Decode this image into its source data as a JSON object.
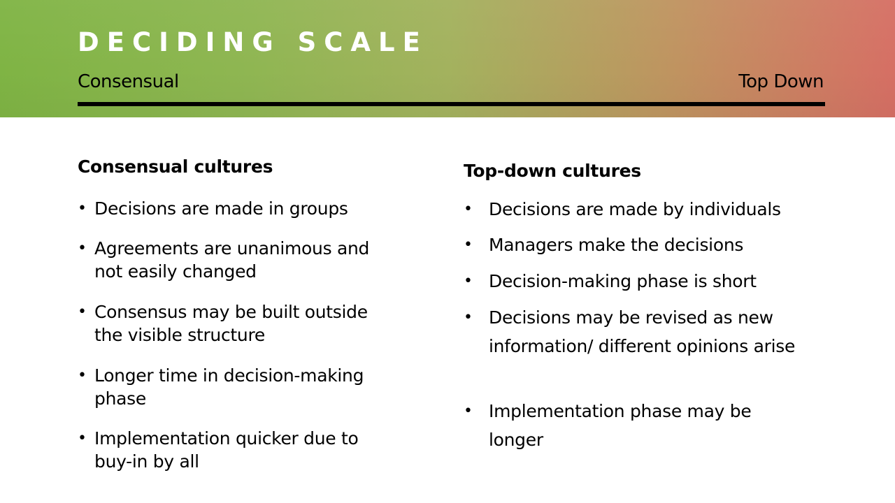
{
  "slide": {
    "title": "DECIDING SCALE",
    "scale": {
      "left_label": "Consensual",
      "right_label": "Top Down"
    },
    "colors": {
      "gradient_start": "#7fb444",
      "gradient_end": "#d66f64",
      "title_text": "#ffffff",
      "body_text": "#000000"
    }
  },
  "left_column": {
    "heading": "Consensual cultures",
    "bullets": [
      "Decisions are made in groups",
      "Agreements are unanimous and not easily changed",
      "Consensus may be built outside the visible structure",
      "Longer time in decision-making phase",
      "Implementation quicker due to buy-in by all"
    ]
  },
  "right_column": {
    "heading": "Top-down cultures",
    "bullets": [
      "Decisions are made by individuals",
      "Managers make the decisions",
      "Decision-making phase is short",
      "Decisions may be revised as new information/ different opinions arise",
      "Implementation phase may be longer"
    ]
  },
  "bullet_glyph": "•"
}
